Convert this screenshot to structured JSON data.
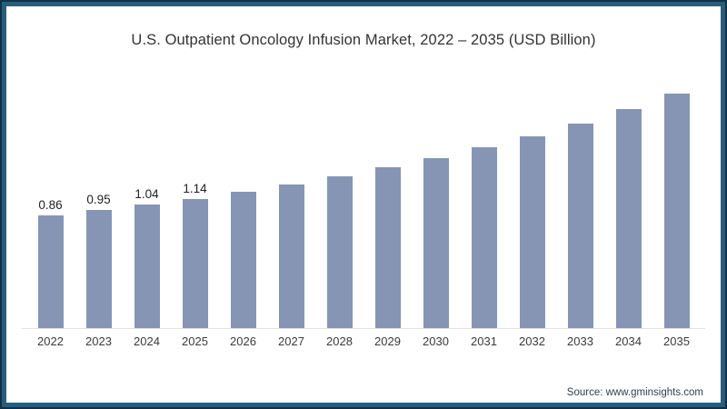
{
  "header": {
    "title": "U.S. Outpatient Oncology Infusion Market, 2022 – 2035 (USD Billion)"
  },
  "chart_data": {
    "type": "bar",
    "title": "U.S. Outpatient Oncology Infusion Market, 2022 – 2035 (USD Billion)",
    "categories": [
      "2022",
      "2023",
      "2024",
      "2025",
      "2026",
      "2027",
      "2028",
      "2029",
      "2030",
      "2031",
      "2032",
      "2033",
      "2034",
      "2035"
    ],
    "values": [
      0.86,
      0.95,
      1.04,
      1.14,
      1.25,
      1.37,
      1.5,
      1.65,
      1.81,
      1.98,
      2.17,
      2.38,
      2.61,
      2.86
    ],
    "data_labels": [
      "0.86",
      "0.95",
      "1.04",
      "1.14",
      "",
      "",
      "",
      "",
      "",
      "",
      "",
      "",
      "",
      ""
    ],
    "ylabel": "",
    "xlabel": "",
    "ylim": [
      0,
      3
    ],
    "grid": "off",
    "legend": "none",
    "bar_color": "#8695b4",
    "axis_line_color": "#e2e2e2"
  },
  "frame": {
    "border_outer_color": "#0f3147",
    "border_inner_color": "#285d7c",
    "background_color": "#ffffff"
  },
  "footer": {
    "source": "Source: www.gminsights.com"
  }
}
